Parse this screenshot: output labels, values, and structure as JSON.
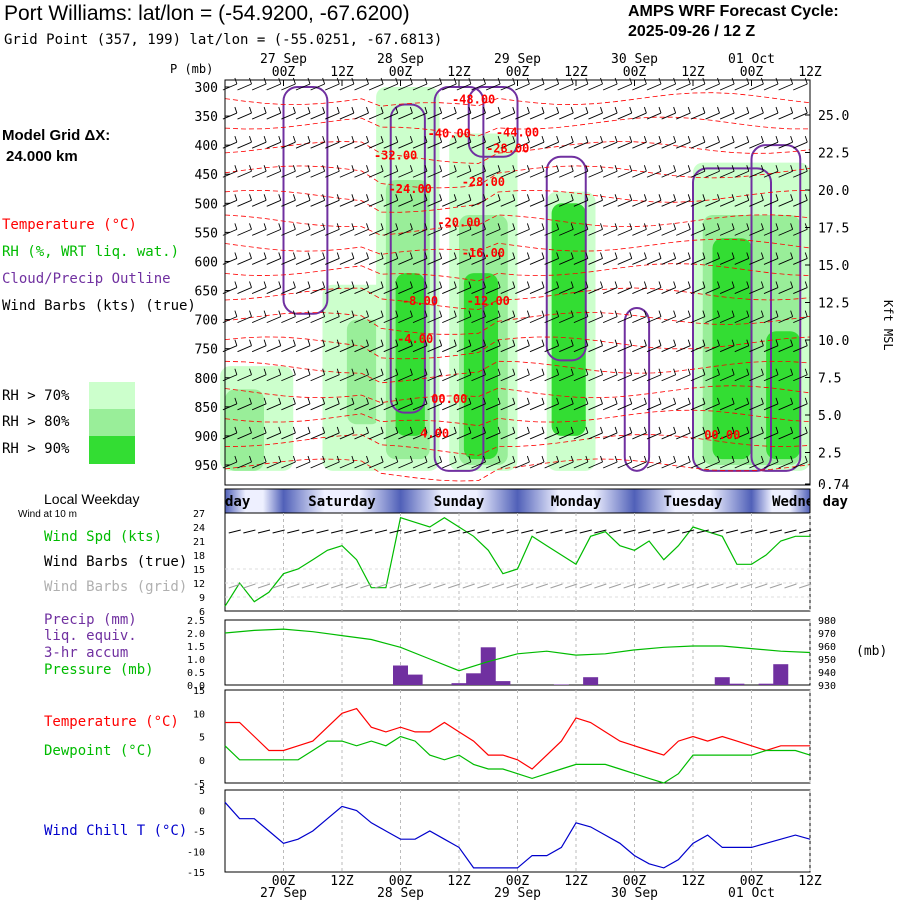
{
  "header": {
    "title": "Port Williams:  lat/lon = (-54.9200, -67.6200)",
    "grid_point": "Grid Point (357, 199) lat/lon = (-55.0251, -67.6813)",
    "cycle_line1": "AMPS WRF Forecast Cycle:",
    "cycle_line2": "2025-09-26 / 12  Z"
  },
  "left_panel": {
    "model_grid": "Model Grid ΔX:",
    "grid_km": "24.000 km",
    "temp_label": "Temperature (°C)",
    "rh_label": "RH (%, WRT liq. wat.)",
    "cloud_label": "Cloud/Precip Outline",
    "wind_label": "Wind Barbs (kts) (true)",
    "rh70": "RH > 70%",
    "rh80": "RH > 80%",
    "rh90": "RH > 90%",
    "local_weekday": "Local Weekday",
    "wind_10m": "Wind at 10 m",
    "wind_spd": "Wind Spd (kts)",
    "wind_true": "Wind Barbs (true)",
    "wind_grid": "Wind Barbs (grid)",
    "precip1": "Precip (mm)",
    "precip2": "liq. equiv.",
    "precip3": "3-hr accum",
    "pressure": "Pressure (mb)",
    "temp2": "Temperature (°C)",
    "dewpoint": "Dewpoint (°C)",
    "windchill": "Wind Chill T (°C)"
  },
  "colors": {
    "temp": "#ff0000",
    "rh": "#00cc00",
    "cloud": "#7030a0",
    "wind": "#000000",
    "rh70": "#ccffcc",
    "rh80": "#99ee99",
    "rh90": "#33dd33",
    "precip": "#7030a0",
    "windchill": "#0000cc",
    "gray": "#a0a0a0"
  },
  "time_axis": {
    "top_dates": [
      "27 Sep",
      "28 Sep",
      "29 Sep",
      "30 Sep",
      "01 Oct"
    ],
    "hour_ticks": [
      "00Z",
      "12Z",
      "00Z",
      "12Z",
      "00Z",
      "12Z",
      "00Z",
      "12Z",
      "00Z",
      "12Z"
    ],
    "hours": [
      12,
      24,
      36,
      48,
      60,
      72,
      84,
      96,
      108,
      120
    ],
    "date_hours": [
      12,
      36,
      60,
      84,
      108
    ],
    "range_hours": [
      0,
      120
    ]
  },
  "cross_section": {
    "p_unit": "P (mb)",
    "pressure_levels": [
      300,
      350,
      400,
      450,
      500,
      550,
      600,
      650,
      700,
      750,
      800,
      850,
      900,
      950
    ],
    "kft_labels": [
      "25.0",
      "22.5",
      "20.0",
      "17.5",
      "15.0",
      "12.5",
      "10.0",
      "7.5",
      "5.0",
      "2.5",
      "0.74"
    ],
    "kft_axis": "Kft MSL",
    "temp_contour_labels": [
      {
        "text": "-48.00",
        "hour": 51,
        "p": 328
      },
      {
        "text": "-40.00",
        "hour": 46,
        "p": 387
      },
      {
        "text": "-44.00",
        "hour": 60,
        "p": 385
      },
      {
        "text": "-32.00",
        "hour": 35,
        "p": 425
      },
      {
        "text": "-28.00",
        "hour": 58,
        "p": 413
      },
      {
        "text": "-24.00",
        "hour": 38,
        "p": 482
      },
      {
        "text": "-28.00",
        "hour": 53,
        "p": 470
      },
      {
        "text": "-20.00",
        "hour": 48,
        "p": 540
      },
      {
        "text": "-16.00",
        "hour": 53,
        "p": 592
      },
      {
        "text": "-8.00",
        "hour": 40,
        "p": 675
      },
      {
        "text": "-12.00",
        "hour": 54,
        "p": 675
      },
      {
        "text": "-4.00",
        "hour": 39,
        "p": 740
      },
      {
        "text": "00.00",
        "hour": 46,
        "p": 843
      },
      {
        "text": "4.00",
        "hour": 43,
        "p": 903
      },
      {
        "text": "00.00",
        "hour": 102,
        "p": 905
      }
    ]
  },
  "weekday_bar": {
    "days": [
      "Friday",
      "Saturday",
      "Sunday",
      "Monday",
      "Tuesday",
      "Wednesday"
    ],
    "day_start_hours": [
      -12,
      12,
      36,
      60,
      84,
      108
    ]
  },
  "chart_data": [
    {
      "type": "line",
      "title": "Wind Spd (kts)",
      "ylim": [
        6,
        27
      ],
      "yticks": [
        "27",
        "24",
        "21",
        "18",
        "15",
        "12",
        "9",
        "6"
      ],
      "x": [
        0,
        3,
        6,
        9,
        12,
        15,
        18,
        21,
        24,
        27,
        30,
        33,
        36,
        39,
        42,
        45,
        48,
        51,
        54,
        57,
        60,
        63,
        66,
        69,
        72,
        75,
        78,
        81,
        84,
        87,
        90,
        93,
        96,
        99,
        102,
        105,
        108,
        111,
        114,
        117,
        120
      ],
      "values": [
        7,
        12,
        8,
        10,
        14,
        15,
        17,
        19,
        20,
        17,
        11,
        11,
        26,
        25,
        24,
        26,
        24,
        22,
        19,
        14,
        15,
        22,
        20,
        18,
        16,
        22,
        23,
        20,
        19,
        21,
        17,
        20,
        24,
        23,
        22,
        16,
        16,
        18,
        21,
        22,
        22
      ]
    },
    {
      "type": "bar",
      "title": "Precip (mm) / Pressure (mb)",
      "ylim": [
        0,
        2.5
      ],
      "yticks": [
        "2.5",
        "2.0",
        "1.5",
        "1.0",
        "0.5",
        "0.0"
      ],
      "pressure_ticks": [
        "980",
        "970",
        "960",
        "950",
        "940",
        "930"
      ],
      "pressure_unit": "(mb)",
      "pressure_ylim": [
        930,
        980
      ],
      "precip_x": [
        36,
        39,
        48,
        51,
        54,
        57,
        69,
        75,
        102,
        105,
        111,
        114
      ],
      "precip_values": [
        0.75,
        0.4,
        0.07,
        0.45,
        1.45,
        0.15,
        0.02,
        0.3,
        0.3,
        0.05,
        0.05,
        0.8
      ],
      "pressure_x": [
        0,
        6,
        12,
        18,
        24,
        30,
        36,
        42,
        48,
        54,
        60,
        66,
        72,
        78,
        84,
        90,
        96,
        102,
        108,
        114,
        120
      ],
      "pressure_values": [
        970,
        972,
        973,
        971,
        968,
        965,
        959,
        950,
        941,
        948,
        954,
        956,
        953,
        954,
        957,
        959,
        960,
        960,
        958,
        956,
        955
      ]
    },
    {
      "type": "line",
      "title": "Temperature / Dewpoint (°C)",
      "ylim": [
        -5,
        15
      ],
      "yticks": [
        "15",
        "10",
        "5",
        "0",
        "-5"
      ],
      "series": [
        {
          "name": "Temperature",
          "x": [
            0,
            3,
            6,
            9,
            12,
            15,
            18,
            21,
            24,
            27,
            30,
            33,
            36,
            39,
            42,
            45,
            48,
            51,
            54,
            57,
            60,
            63,
            66,
            69,
            72,
            75,
            78,
            81,
            84,
            87,
            90,
            93,
            96,
            99,
            102,
            105,
            108,
            111,
            114,
            117,
            120
          ],
          "values": [
            8,
            8,
            5,
            2,
            2,
            3,
            4,
            7,
            10,
            11,
            7,
            6,
            7,
            6,
            6,
            8,
            6,
            4,
            1,
            1,
            0,
            -2,
            1,
            4,
            9,
            8,
            6,
            4,
            3,
            2,
            1,
            4,
            5,
            4,
            5,
            4,
            3,
            2,
            3,
            3,
            3
          ]
        },
        {
          "name": "Dewpoint",
          "x": [
            0,
            3,
            6,
            9,
            12,
            15,
            18,
            21,
            24,
            27,
            30,
            33,
            36,
            39,
            42,
            45,
            48,
            51,
            54,
            57,
            60,
            63,
            66,
            69,
            72,
            75,
            78,
            81,
            84,
            87,
            90,
            93,
            96,
            99,
            102,
            105,
            108,
            111,
            114,
            117,
            120
          ],
          "values": [
            3,
            0,
            0,
            0,
            0,
            0,
            2,
            4,
            4,
            3,
            4,
            3,
            5,
            4,
            1,
            0,
            1,
            -1,
            -2,
            -2,
            -3,
            -4,
            -3,
            -2,
            -1,
            -1,
            -1,
            -2,
            -3,
            -4,
            -5,
            -3,
            1,
            1,
            1,
            1,
            1,
            2,
            2,
            2,
            1
          ]
        }
      ]
    },
    {
      "type": "line",
      "title": "Wind Chill T (°C)",
      "ylim": [
        -15,
        5
      ],
      "yticks": [
        "5",
        "0",
        "-5",
        "-10",
        "-15"
      ],
      "x": [
        0,
        3,
        6,
        9,
        12,
        15,
        18,
        21,
        24,
        27,
        30,
        33,
        36,
        39,
        42,
        45,
        48,
        51,
        54,
        57,
        60,
        63,
        66,
        69,
        72,
        75,
        78,
        81,
        84,
        87,
        90,
        93,
        96,
        99,
        102,
        105,
        108,
        111,
        114,
        117,
        120
      ],
      "values": [
        2,
        -2,
        -2,
        -5,
        -8,
        -7,
        -5,
        -2,
        1,
        0,
        -3,
        -5,
        -7,
        -7,
        -5,
        -7,
        -9,
        -14,
        -14,
        -14,
        -14,
        -11,
        -11,
        -9,
        -3,
        -4,
        -6,
        -8,
        -11,
        -13,
        -14,
        -12,
        -8,
        -6,
        -9,
        -9,
        -9,
        -8,
        -7,
        -6,
        -7
      ]
    }
  ],
  "bottom_axis": {
    "hour_ticks": [
      "00Z",
      "12Z",
      "00Z",
      "12Z",
      "00Z",
      "12Z",
      "00Z",
      "12Z",
      "00Z",
      "12Z"
    ],
    "dates": [
      "27 Sep",
      "28 Sep",
      "29 Sep",
      "30 Sep",
      "01 Oct"
    ]
  }
}
